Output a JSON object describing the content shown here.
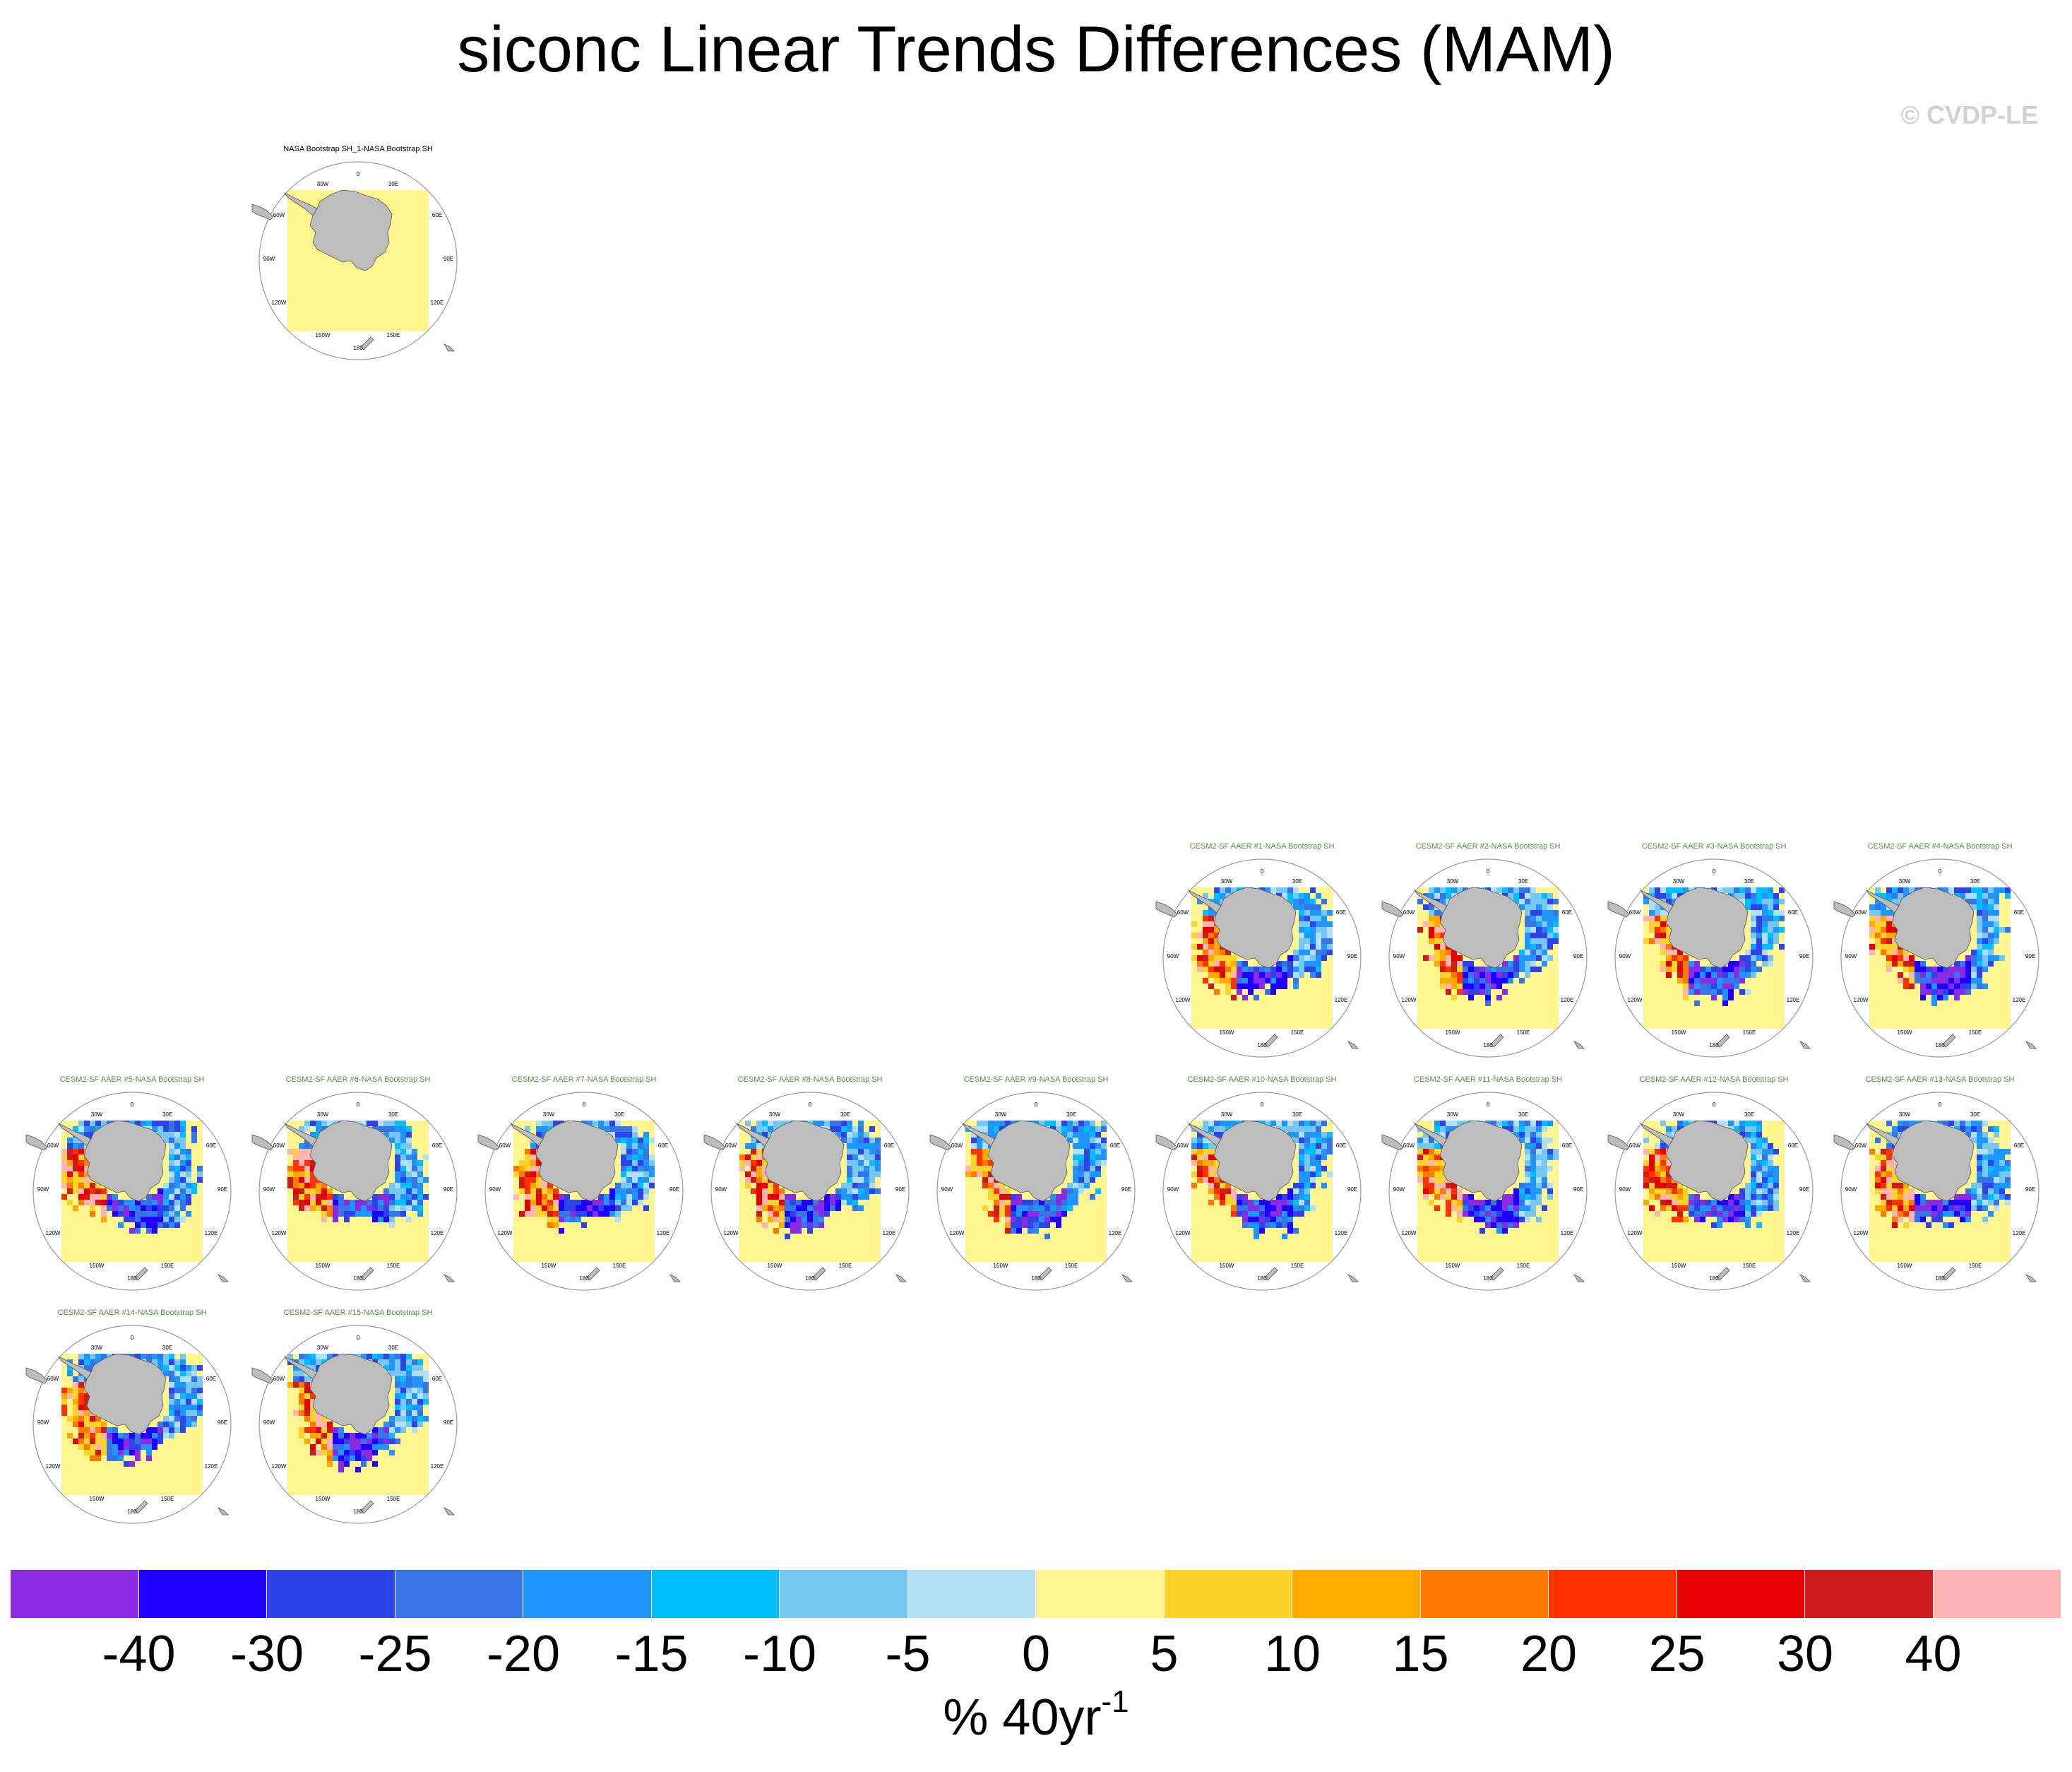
{
  "page": {
    "title": "siconc Linear Trends Differences (MAM)",
    "copyright": "© CVDP-LE"
  },
  "map_labels": {
    "top": "0",
    "upper_left": "30W",
    "upper_right": "30E",
    "mid_upper_left": "60W",
    "mid_upper_right": "60E",
    "left": "90W",
    "right": "90E",
    "lower_left": "120W",
    "lower_right": "120E",
    "bottom_left": "150W",
    "bottom_right": "150E",
    "bottom": "180"
  },
  "chart_data": {
    "type": "heatmap",
    "title": "siconc Linear Trends Differences (MAM)",
    "units": "% 40yr",
    "units_superscript": "-1",
    "colorbar": {
      "levels": [
        "-40",
        "-30",
        "-25",
        "-20",
        "-15",
        "-10",
        "-5",
        "0",
        "5",
        "10",
        "15",
        "20",
        "25",
        "30",
        "40"
      ],
      "colors": [
        "#8a2be2",
        "#1f00ff",
        "#2e44e8",
        "#3575e6",
        "#1e96ff",
        "#00bfff",
        "#76c8f0",
        "#b2dff5",
        "#fff68f",
        "#ffd42a",
        "#ffaa00",
        "#ff7a00",
        "#ff3300",
        "#e60000",
        "#cc1c1c",
        "#ffb3b3"
      ]
    },
    "panels": [
      {
        "title": "NASA Bootstrap SH_1-NASA Bootstrap SH",
        "title_color": "#000000",
        "pattern": "zero"
      },
      {
        "title": "CESM2-SF AAER #1-NASA Bootstrap SH",
        "title_color": "#5a8a4a",
        "pattern": "trend"
      },
      {
        "title": "CESM2-SF AAER #2-NASA Bootstrap SH",
        "title_color": "#5a8a4a",
        "pattern": "trend"
      },
      {
        "title": "CESM2-SF AAER #3-NASA Bootstrap SH",
        "title_color": "#5a8a4a",
        "pattern": "trend"
      },
      {
        "title": "CESM2-SF AAER #4-NASA Bootstrap SH",
        "title_color": "#5a8a4a",
        "pattern": "trend"
      },
      {
        "title": "CESM2-SF AAER #5-NASA Bootstrap SH",
        "title_color": "#5a8a4a",
        "pattern": "trend"
      },
      {
        "title": "CESM2-SF AAER #6-NASA Bootstrap SH",
        "title_color": "#5a8a4a",
        "pattern": "trend"
      },
      {
        "title": "CESM2-SF AAER #7-NASA Bootstrap SH",
        "title_color": "#5a8a4a",
        "pattern": "trend"
      },
      {
        "title": "CESM2-SF AAER #8-NASA Bootstrap SH",
        "title_color": "#5a8a4a",
        "pattern": "trend"
      },
      {
        "title": "CESM2-SF AAER #9-NASA Bootstrap SH",
        "title_color": "#5a8a4a",
        "pattern": "trend"
      },
      {
        "title": "CESM2-SF AAER #10-NASA Bootstrap SH",
        "title_color": "#5a8a4a",
        "pattern": "trend"
      },
      {
        "title": "CESM2-SF AAER #11-NASA Bootstrap SH",
        "title_color": "#5a8a4a",
        "pattern": "trend"
      },
      {
        "title": "CESM2-SF AAER #12-NASA Bootstrap SH",
        "title_color": "#5a8a4a",
        "pattern": "trend"
      },
      {
        "title": "CESM2-SF AAER #13-NASA Bootstrap SH",
        "title_color": "#5a8a4a",
        "pattern": "trend"
      },
      {
        "title": "CESM2-SF AAER #14-NASA Bootstrap SH",
        "title_color": "#5a8a4a",
        "pattern": "trend"
      },
      {
        "title": "CESM2-SF AAER #15-NASA Bootstrap SH",
        "title_color": "#5a8a4a",
        "pattern": "trend"
      }
    ]
  }
}
